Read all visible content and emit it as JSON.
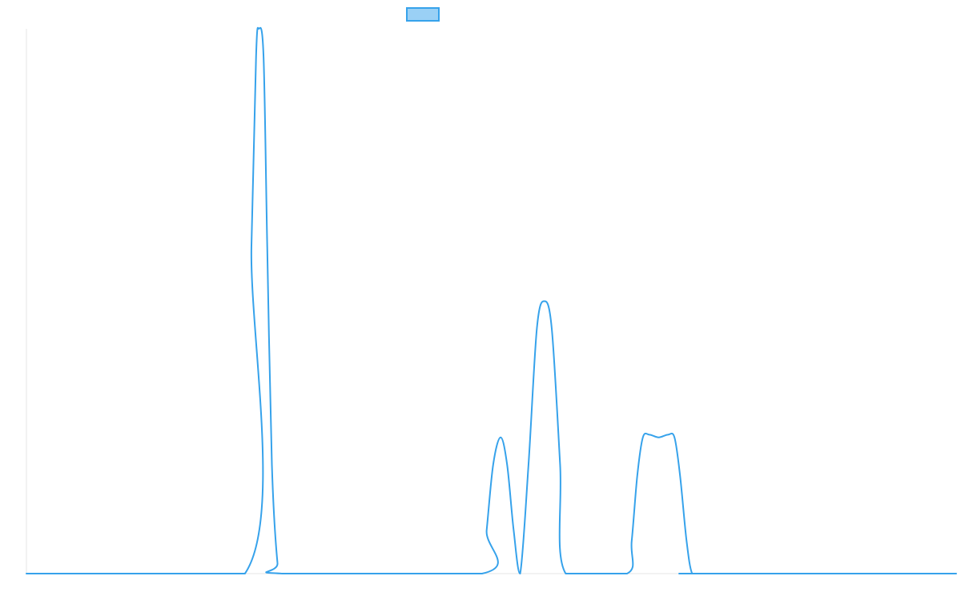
{
  "chart_data": {
    "type": "line",
    "title": "",
    "xlabel": "",
    "ylabel": "",
    "xlim": [
      0,
      100
    ],
    "ylim": [
      0,
      100
    ],
    "grid": false,
    "legend_placement": "top-center",
    "series": [
      {
        "color": "#36a2eb",
        "fill": "#9ad0f5",
        "x": [
          0,
          23.5,
          24.2,
          24.7,
          25.0,
          25.5,
          25.9,
          26.4,
          27.0,
          27.5,
          49.0,
          49.5,
          50.2,
          51.0,
          51.7,
          52.4,
          53.1,
          54.0,
          54.9,
          55.7,
          56.5,
          57.4,
          58.0,
          64.6,
          65.1,
          65.7,
          66.3,
          67.0,
          68.0,
          69.0,
          69.7,
          70.3,
          71.0,
          71.6,
          72.5,
          100
        ],
        "y": [
          0,
          0,
          60,
          95,
          100,
          95,
          60,
          20,
          2,
          0,
          0,
          8,
          20,
          25,
          20,
          8,
          0,
          20,
          45,
          50,
          45,
          20,
          0,
          0,
          6,
          18,
          25,
          25.5,
          25,
          25.5,
          25,
          18,
          6,
          0,
          0,
          0
        ]
      }
    ]
  }
}
